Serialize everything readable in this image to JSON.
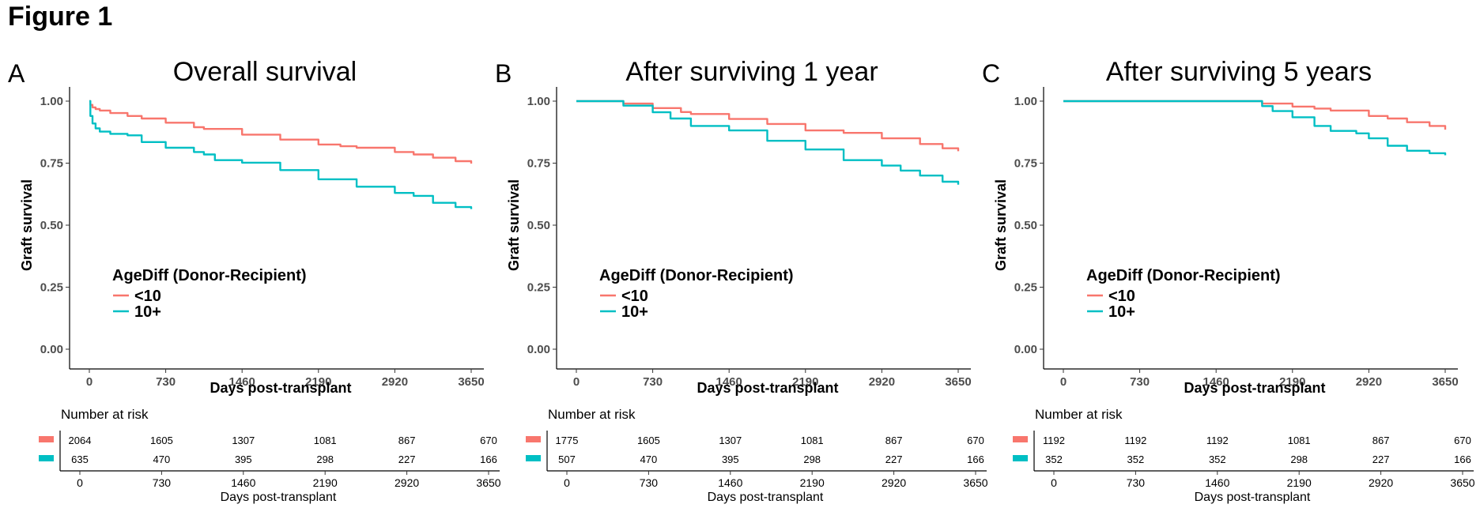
{
  "figure_title": "Figure 1",
  "colors": {
    "lt10": "#F8766D",
    "ge10": "#00BFC4"
  },
  "chart_data": [
    {
      "type": "line",
      "panel_letter": "A",
      "title": "Overall survival",
      "xlabel": "Days post-transplant",
      "ylabel": "Graft survival",
      "xlim": [
        0,
        3650
      ],
      "ylim": [
        0,
        1
      ],
      "xticks": [
        "0",
        "730",
        "1460",
        "2190",
        "2920",
        "3650"
      ],
      "yticks": [
        "0.00",
        "0.25",
        "0.50",
        "0.75",
        "1.00"
      ],
      "grid": false,
      "legend_title": "AgeDiff (Donor-Recipient)",
      "series": [
        {
          "name": "<10",
          "color": "#F8766D",
          "x": [
            0,
            10,
            30,
            60,
            100,
            200,
            365,
            500,
            730,
            1000,
            1095,
            1460,
            1825,
            2190,
            2400,
            2555,
            2920,
            3100,
            3285,
            3500,
            3650
          ],
          "y": [
            1.0,
            0.985,
            0.975,
            0.968,
            0.962,
            0.952,
            0.94,
            0.93,
            0.913,
            0.895,
            0.888,
            0.865,
            0.845,
            0.825,
            0.818,
            0.812,
            0.795,
            0.785,
            0.772,
            0.758,
            0.748
          ]
        },
        {
          "name": "10+",
          "color": "#00BFC4",
          "x": [
            0,
            10,
            30,
            60,
            100,
            200,
            365,
            500,
            730,
            1000,
            1095,
            1200,
            1460,
            1825,
            2190,
            2555,
            2920,
            3100,
            3285,
            3500,
            3650
          ],
          "y": [
            1.0,
            0.94,
            0.91,
            0.89,
            0.877,
            0.868,
            0.862,
            0.835,
            0.812,
            0.795,
            0.785,
            0.762,
            0.752,
            0.722,
            0.685,
            0.655,
            0.63,
            0.618,
            0.59,
            0.573,
            0.565
          ]
        }
      ],
      "risk_table": {
        "title": "Number at risk",
        "xlabel": "Days post-transplant",
        "xticks": [
          "0",
          "730",
          "1460",
          "2190",
          "2920",
          "3650"
        ],
        "rows": [
          {
            "group": "<10",
            "color": "#F8766D",
            "values": [
              "2064",
              "1605",
              "1307",
              "1081",
              "867",
              "670"
            ]
          },
          {
            "group": "10+",
            "color": "#00BFC4",
            "values": [
              "635",
              "470",
              "395",
              "298",
              "227",
              "166"
            ]
          }
        ]
      }
    },
    {
      "type": "line",
      "panel_letter": "B",
      "title": "After surviving 1 year",
      "xlabel": "Days post-transplant",
      "ylabel": "Graft survival",
      "xlim": [
        0,
        3650
      ],
      "ylim": [
        0,
        1
      ],
      "xticks": [
        "0",
        "730",
        "1460",
        "2190",
        "2920",
        "3650"
      ],
      "yticks": [
        "0.00",
        "0.25",
        "0.50",
        "0.75",
        "1.00"
      ],
      "grid": false,
      "legend_title": "AgeDiff (Donor-Recipient)",
      "series": [
        {
          "name": "<10",
          "color": "#F8766D",
          "x": [
            0,
            365,
            450,
            730,
            1000,
            1095,
            1460,
            1825,
            2190,
            2555,
            2920,
            3285,
            3500,
            3650
          ],
          "y": [
            1.0,
            1.0,
            0.99,
            0.972,
            0.956,
            0.948,
            0.928,
            0.908,
            0.882,
            0.872,
            0.85,
            0.827,
            0.81,
            0.798
          ]
        },
        {
          "name": "10+",
          "color": "#00BFC4",
          "x": [
            0,
            365,
            450,
            730,
            900,
            1095,
            1460,
            1825,
            2190,
            2555,
            2920,
            3100,
            3285,
            3500,
            3650
          ],
          "y": [
            1.0,
            1.0,
            0.982,
            0.955,
            0.93,
            0.9,
            0.882,
            0.84,
            0.805,
            0.762,
            0.74,
            0.72,
            0.7,
            0.675,
            0.663
          ]
        }
      ],
      "risk_table": {
        "title": "Number at risk",
        "xlabel": "Days post-transplant",
        "xticks": [
          "0",
          "730",
          "1460",
          "2190",
          "2920",
          "3650"
        ],
        "rows": [
          {
            "group": "<10",
            "color": "#F8766D",
            "values": [
              "1775",
              "1605",
              "1307",
              "1081",
              "867",
              "670"
            ]
          },
          {
            "group": "10+",
            "color": "#00BFC4",
            "values": [
              "507",
              "470",
              "395",
              "298",
              "227",
              "166"
            ]
          }
        ]
      }
    },
    {
      "type": "line",
      "panel_letter": "C",
      "title": "After surviving 5 years",
      "xlabel": "Days post-transplant",
      "ylabel": "Graft survival",
      "xlim": [
        0,
        3650
      ],
      "ylim": [
        0,
        1
      ],
      "xticks": [
        "0",
        "730",
        "1460",
        "2190",
        "2920",
        "3650"
      ],
      "yticks": [
        "0.00",
        "0.25",
        "0.50",
        "0.75",
        "1.00"
      ],
      "grid": false,
      "legend_title": "AgeDiff (Donor-Recipient)",
      "series": [
        {
          "name": "<10",
          "color": "#F8766D",
          "x": [
            0,
            1825,
            1900,
            2190,
            2400,
            2555,
            2920,
            3100,
            3285,
            3500,
            3650
          ],
          "y": [
            1.0,
            1.0,
            0.99,
            0.978,
            0.97,
            0.962,
            0.94,
            0.93,
            0.915,
            0.9,
            0.885
          ]
        },
        {
          "name": "10+",
          "color": "#00BFC4",
          "x": [
            0,
            1825,
            1900,
            2000,
            2190,
            2400,
            2555,
            2800,
            2920,
            3100,
            3285,
            3500,
            3650
          ],
          "y": [
            1.0,
            1.0,
            0.98,
            0.96,
            0.935,
            0.9,
            0.88,
            0.87,
            0.85,
            0.82,
            0.8,
            0.79,
            0.782
          ]
        }
      ],
      "risk_table": {
        "title": "Number at risk",
        "xlabel": "Days post-transplant",
        "xticks": [
          "0",
          "730",
          "1460",
          "2190",
          "2920",
          "3650"
        ],
        "rows": [
          {
            "group": "<10",
            "color": "#F8766D",
            "values": [
              "1192",
              "1192",
              "1192",
              "1081",
              "867",
              "670"
            ]
          },
          {
            "group": "10+",
            "color": "#00BFC4",
            "values": [
              "352",
              "352",
              "352",
              "298",
              "227",
              "166"
            ]
          }
        ]
      }
    }
  ]
}
